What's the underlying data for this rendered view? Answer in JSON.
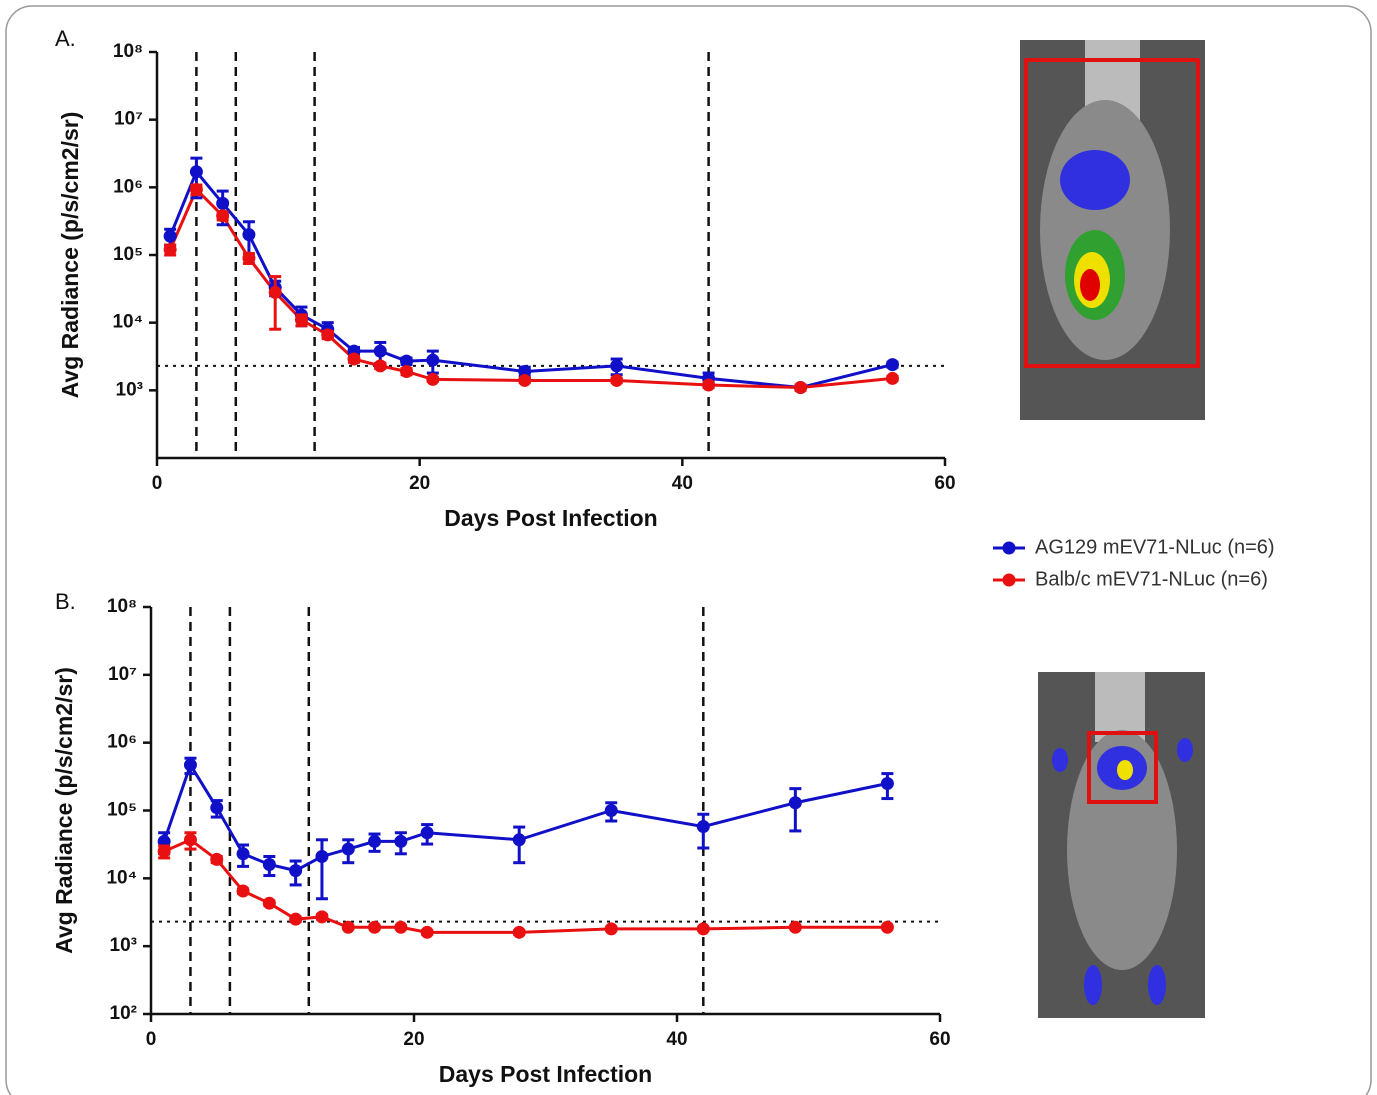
{
  "chart_data": [
    {
      "type": "line",
      "label": "A.",
      "x_label": "Days Post Infection",
      "y_label": "Avg Radiance (p/s/cm2/sr)",
      "x": [
        1,
        3,
        5,
        7,
        9,
        11,
        13,
        15,
        17,
        19,
        21,
        28,
        35,
        42,
        49,
        56
      ],
      "series": [
        {
          "name": "AG129 mEV71-NLuc (n=6)",
          "color": "#1010c8",
          "values": [
            190000,
            1700000,
            580000,
            200000,
            33000,
            13000,
            8000,
            3800,
            3800,
            2700,
            2800,
            1900,
            2300,
            1500,
            1100,
            2400
          ],
          "errors": [
            50000,
            1000000,
            300000,
            110000,
            8000,
            4000,
            2000,
            500,
            1300,
            300,
            1000,
            300,
            600,
            300,
            0,
            200
          ]
        },
        {
          "name": "Balb/c mEV71-NLuc (n=6)",
          "color": "#e81010",
          "values": [
            120000,
            930000,
            380000,
            90000,
            28000,
            11000,
            6600,
            2900,
            2300,
            1900,
            1450,
            1400,
            1400,
            1200,
            1100,
            1500
          ],
          "errors": [
            20000,
            150000,
            50000,
            15000,
            20000,
            2000,
            800,
            300,
            200,
            200,
            100,
            100,
            100,
            100,
            100,
            100
          ]
        }
      ],
      "xlim": [
        0,
        60
      ],
      "xticks": [
        0,
        20,
        40,
        60
      ],
      "log_y": true,
      "ylim": [
        100,
        100000000
      ],
      "yticks": [
        {
          "value": 1000,
          "label": "10³"
        },
        {
          "value": 10000,
          "label": "10⁴"
        },
        {
          "value": 100000,
          "label": "10⁵"
        },
        {
          "value": 1000000,
          "label": "10⁶"
        },
        {
          "value": 10000000,
          "label": "10⁷"
        },
        {
          "value": 100000000,
          "label": "10⁸"
        }
      ],
      "vlines": [
        3,
        6,
        12,
        42
      ],
      "hline": 2300
    },
    {
      "type": "line",
      "label": "B.",
      "x_label": "Days Post Infection",
      "y_label": "Avg Radiance (p/s/cm2/sr)",
      "x": [
        1,
        3,
        5,
        7,
        9,
        11,
        13,
        15,
        17,
        19,
        21,
        28,
        35,
        42,
        49,
        56
      ],
      "series": [
        {
          "color": "#1010c8",
          "values": [
            35000,
            470000,
            110000,
            23000,
            16000,
            13000,
            21000,
            27000,
            35000,
            35000,
            47000,
            37000,
            100000,
            58000,
            130000,
            250000
          ],
          "errors": [
            12000,
            120000,
            30000,
            8000,
            5000,
            5000,
            16000,
            10000,
            10000,
            12000,
            15000,
            20000,
            30000,
            30000,
            80000,
            100000
          ]
        },
        {
          "color": "#e81010",
          "values": [
            25000,
            37000,
            19000,
            6500,
            4300,
            2500,
            2700,
            1900,
            1900,
            1900,
            1600,
            1600,
            1800,
            1800,
            1900,
            1900
          ],
          "errors": [
            5000,
            10000,
            2000,
            500,
            300,
            200,
            200,
            100,
            100,
            100,
            100,
            100,
            100,
            100,
            100,
            100
          ]
        }
      ],
      "xlim": [
        0,
        60
      ],
      "xticks": [
        0,
        20,
        40,
        60
      ],
      "log_y": true,
      "ylim": [
        100,
        100000000
      ],
      "yticks": [
        {
          "value": 100,
          "label": "10²"
        },
        {
          "value": 1000,
          "label": "10³"
        },
        {
          "value": 10000,
          "label": "10⁴"
        },
        {
          "value": 100000,
          "label": "10⁵"
        },
        {
          "value": 1000000,
          "label": "10⁶"
        },
        {
          "value": 10000000,
          "label": "10⁷"
        },
        {
          "value": 100000000,
          "label": "10⁸"
        }
      ],
      "vlines": [
        3,
        6,
        12,
        42
      ],
      "hline": 2300
    }
  ]
}
